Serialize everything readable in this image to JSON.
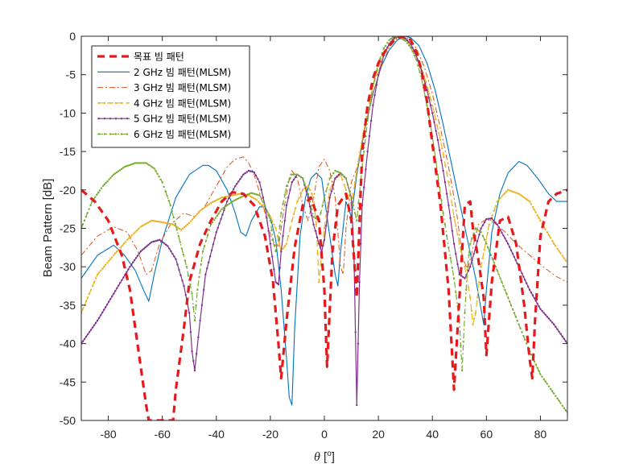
{
  "chart_data": {
    "type": "line",
    "xlabel": "θ [ᵒ]",
    "ylabel": "Beam Pattern [dB]",
    "xlim": [
      -90,
      90
    ],
    "ylim": [
      -50,
      0
    ],
    "xticks": [
      -80,
      -60,
      -40,
      -20,
      0,
      20,
      40,
      60,
      80
    ],
    "xtick_labels": [
      "-80",
      "-60",
      "-40",
      "-20",
      "0",
      "20",
      "40",
      "60",
      "80"
    ],
    "yticks": [
      0,
      -5,
      -10,
      -15,
      -20,
      -25,
      -30,
      -35,
      -40,
      -45,
      -50
    ],
    "ytick_labels": [
      "0",
      "-5",
      "-10",
      "-15",
      "-20",
      "-25",
      "-30",
      "-35",
      "-40",
      "-45",
      "-50"
    ],
    "grid": false,
    "legend_position": "top-left",
    "series": [
      {
        "name": "목표 빔 패턴",
        "color": "#e41a1c",
        "style": "dashed-thick",
        "x": [
          -90,
          -85,
          -80,
          -75,
          -72,
          -70,
          -68,
          -66,
          -65,
          -56,
          -55,
          -52,
          -50,
          -46,
          -42,
          -38,
          -34,
          -30,
          -26,
          -22,
          -19,
          -17,
          -16,
          -14,
          -11,
          -8,
          -5,
          -2,
          0,
          1,
          3,
          5,
          8,
          10,
          12,
          14,
          16,
          18,
          20,
          22,
          24,
          26,
          28,
          30,
          32,
          34,
          36,
          38,
          40,
          43,
          46,
          48,
          50,
          52,
          54,
          55,
          57,
          59,
          60,
          62,
          65,
          68,
          71,
          74,
          76,
          77,
          78,
          80,
          83,
          86,
          90
        ],
        "y": [
          -20,
          -21.5,
          -24,
          -28.5,
          -33,
          -38,
          -43,
          -48,
          -50,
          -50,
          -46,
          -38,
          -32,
          -27,
          -24,
          -21.5,
          -20.3,
          -20.5,
          -22,
          -26,
          -32,
          -40,
          -44.5,
          -37,
          -27.5,
          -22,
          -21,
          -24,
          -33,
          -43,
          -28,
          -22,
          -20.5,
          -24,
          -34,
          -15,
          -9,
          -5.5,
          -3.5,
          -2.2,
          -1.2,
          -0.5,
          -0.1,
          0,
          -0.5,
          -2,
          -4.5,
          -8.5,
          -14,
          -22,
          -33,
          -46,
          -34,
          -22,
          -21.5,
          -25,
          -29,
          -34,
          -41.5,
          -32,
          -24,
          -23.5,
          -27,
          -35,
          -42,
          -44.5,
          -37,
          -26,
          -21.5,
          -20.5,
          -20
        ]
      },
      {
        "name": "2 GHz 빔 패턴(MLSM)",
        "color": "#0072bd",
        "style": "solid",
        "x": [
          -90,
          -84,
          -78,
          -74,
          -70,
          -67,
          -65,
          -63,
          -60,
          -55,
          -50,
          -45,
          -43,
          -40,
          -36,
          -33,
          -31,
          -29,
          -27,
          -24,
          -22,
          -20,
          -18,
          -16,
          -14,
          -13,
          -12,
          -11,
          -9,
          -7,
          -5,
          -3,
          -1,
          0,
          2,
          4,
          5,
          6,
          8,
          10,
          12,
          15,
          18,
          21,
          24,
          27,
          30,
          32,
          35,
          38,
          41,
          44,
          47,
          50,
          53,
          56,
          58,
          59,
          60,
          62,
          65,
          68,
          72,
          75,
          79,
          83,
          86,
          90
        ],
        "y": [
          -31.5,
          -28.5,
          -27.2,
          -28.5,
          -30.5,
          -33,
          -34.5,
          -31,
          -26.5,
          -21,
          -18,
          -16.8,
          -16.8,
          -17.5,
          -20,
          -23,
          -25.5,
          -26,
          -24,
          -22.2,
          -22.2,
          -23.5,
          -26.5,
          -33,
          -42,
          -47,
          -48,
          -38,
          -26,
          -21,
          -18.5,
          -17.8,
          -18.5,
          -21,
          -26,
          -31,
          -32.5,
          -28,
          -21.5,
          -23.5,
          -18,
          -12,
          -7.5,
          -4,
          -1.8,
          -0.5,
          0,
          -0.2,
          -1.2,
          -3.5,
          -7,
          -11.5,
          -16.5,
          -21.5,
          -26.5,
          -31.5,
          -35.5,
          -37.5,
          -33,
          -25.5,
          -20.5,
          -17.8,
          -16.3,
          -16.8,
          -18.5,
          -20.5,
          -21.5,
          -21.5
        ]
      },
      {
        "name": "3 GHz 빔 패턴(MLSM)",
        "color": "#d95319",
        "style": "dashdot",
        "x": [
          -90,
          -84,
          -78,
          -73,
          -69,
          -66,
          -64,
          -61,
          -57,
          -52,
          -48,
          -44,
          -40,
          -36,
          -33,
          -30,
          -28,
          -26,
          -23,
          -21,
          -19,
          -17,
          -15,
          -13,
          -12,
          -10,
          -8,
          -6,
          -4,
          -2,
          0,
          2,
          4,
          6,
          7,
          8,
          10,
          12,
          15,
          18,
          21,
          24,
          27,
          29,
          31,
          34,
          37,
          40,
          43,
          46,
          49,
          51,
          53,
          55,
          57,
          60,
          63,
          67,
          71,
          76,
          81,
          86,
          90
        ],
        "y": [
          -28.5,
          -26,
          -24.8,
          -25.5,
          -28,
          -31,
          -30.5,
          -27,
          -24.5,
          -23,
          -23.5,
          -22,
          -19.5,
          -17,
          -16,
          -15.7,
          -16.5,
          -18,
          -21.5,
          -24.5,
          -27,
          -27.5,
          -22.5,
          -18.5,
          -17.5,
          -18.5,
          -22,
          -24,
          -21,
          -17,
          -16,
          -17.5,
          -21,
          -30,
          -31,
          -25,
          -19,
          -17.2,
          -12,
          -7.5,
          -4,
          -1.5,
          -0.2,
          0,
          -0.3,
          -1.5,
          -4,
          -7.5,
          -12,
          -17,
          -23,
          -28.5,
          -30.5,
          -27.5,
          -24.5,
          -23.8,
          -24.3,
          -25.5,
          -27,
          -28.5,
          -30,
          -31.3,
          -32
        ]
      },
      {
        "name": "4 GHz 빔 패턴(MLSM)",
        "color": "#edb120",
        "style": "dashed-dots",
        "x": [
          -90,
          -84,
          -78,
          -73,
          -68,
          -64,
          -60,
          -56,
          -53,
          -50,
          -46,
          -42,
          -38,
          -34,
          -31,
          -28,
          -25,
          -22,
          -20,
          -18,
          -16,
          -14,
          -12,
          -10,
          -8,
          -6,
          -4,
          -3,
          -2,
          0,
          2,
          4,
          6,
          8,
          10,
          12,
          15,
          18,
          21,
          24,
          27,
          29,
          31,
          34,
          37,
          40,
          43,
          46,
          48,
          50,
          52,
          54,
          55,
          56,
          58,
          61,
          64,
          68,
          72,
          76,
          80,
          85,
          90
        ],
        "y": [
          -36,
          -31,
          -28.5,
          -26.5,
          -24.8,
          -24,
          -24.2,
          -24.5,
          -25.2,
          -24.3,
          -22.7,
          -21.7,
          -21,
          -20.7,
          -20.5,
          -20.7,
          -21.3,
          -22.5,
          -23.5,
          -25,
          -28,
          -27,
          -24,
          -21.5,
          -20,
          -19.5,
          -21,
          -24.5,
          -32,
          -25,
          -20,
          -18.5,
          -18,
          -20,
          -22,
          -17.5,
          -11.5,
          -6.5,
          -3,
          -1,
          0,
          -0.2,
          -0.8,
          -2.5,
          -5.2,
          -9,
          -13.5,
          -19,
          -23.5,
          -27,
          -30,
          -34,
          -37.5,
          -36,
          -30,
          -24.5,
          -21.5,
          -20,
          -20.5,
          -21.5,
          -24,
          -27,
          -29.5
        ]
      },
      {
        "name": "5 GHz 빔 패턴(MLSM)",
        "color": "#7e2f8e",
        "style": "solid-dots",
        "x": [
          -90,
          -84,
          -78,
          -72,
          -68,
          -64,
          -61,
          -58,
          -55,
          -52,
          -50,
          -49,
          -48,
          -46,
          -44,
          -40,
          -36,
          -33,
          -30,
          -28,
          -26,
          -24,
          -22,
          -20,
          -18,
          -17,
          -16,
          -14,
          -12,
          -10,
          -8,
          -6,
          -4,
          -2,
          -1,
          0,
          2,
          4,
          6,
          8,
          10,
          11,
          12,
          13,
          14,
          16,
          18,
          20,
          22,
          24,
          26,
          28,
          30,
          32,
          34,
          36,
          38,
          40,
          42,
          44,
          46,
          48,
          50,
          52,
          54,
          56,
          58,
          60,
          62,
          64,
          68,
          72,
          76,
          80,
          85,
          90
        ],
        "y": [
          -40,
          -37,
          -33.5,
          -30,
          -28,
          -26.8,
          -26.5,
          -27.3,
          -29,
          -32.5,
          -36,
          -41,
          -43.5,
          -37,
          -31,
          -25.5,
          -21.5,
          -19.5,
          -18,
          -17.5,
          -17.7,
          -19,
          -22,
          -27,
          -32,
          -32.3,
          -28,
          -22,
          -19,
          -18,
          -18.5,
          -21,
          -24.5,
          -27,
          -28,
          -26.5,
          -21,
          -18.5,
          -17.8,
          -18.5,
          -21,
          -29,
          -48,
          -32,
          -22,
          -15,
          -9,
          -5,
          -2.5,
          -1,
          -0.2,
          0,
          -0.3,
          -1,
          -2.5,
          -4.5,
          -7,
          -10,
          -13.5,
          -17.5,
          -22,
          -27,
          -31,
          -31.5,
          -30,
          -27.5,
          -25,
          -23.8,
          -23.7,
          -24.5,
          -27,
          -30,
          -33,
          -35.5,
          -37.5,
          -40
        ]
      },
      {
        "name": "6 GHz 빔 패턴(MLSM)",
        "color": "#77ac30",
        "style": "dashdot-dots",
        "x": [
          -90,
          -86,
          -82,
          -78,
          -74,
          -70,
          -66,
          -63,
          -60,
          -57,
          -54,
          -51,
          -49,
          -48,
          -47,
          -45,
          -42,
          -38,
          -34,
          -30,
          -27,
          -24,
          -22,
          -20,
          -19,
          -18,
          -17,
          -16,
          -14,
          -12,
          -10,
          -8,
          -6,
          -4,
          -2,
          0,
          2,
          4,
          6,
          8,
          10,
          12,
          14,
          16,
          18,
          20,
          22,
          24,
          26,
          28,
          30,
          32,
          34,
          36,
          38,
          40,
          42,
          44,
          46,
          48,
          50,
          51,
          52,
          53,
          54,
          56,
          58,
          60,
          64,
          68,
          72,
          76,
          80,
          85,
          90
        ],
        "y": [
          -25,
          -21.5,
          -19.5,
          -18,
          -17,
          -16.5,
          -16.5,
          -17.2,
          -19,
          -22,
          -26,
          -30,
          -33.5,
          -37,
          -33,
          -28,
          -24.5,
          -22.5,
          -21.5,
          -20.8,
          -20.4,
          -20.7,
          -22,
          -24,
          -26.5,
          -28,
          -26.5,
          -23,
          -19.5,
          -18,
          -18,
          -18.5,
          -20.5,
          -23.5,
          -24,
          -21,
          -18.5,
          -17.5,
          -17.8,
          -18.5,
          -21,
          -24,
          -17,
          -11,
          -6.5,
          -3.5,
          -1.6,
          -0.5,
          0,
          -0.2,
          -0.6,
          -1.5,
          -3,
          -5.5,
          -9,
          -13,
          -18,
          -23,
          -27.5,
          -31.5,
          -37,
          -43.5,
          -36,
          -30,
          -27,
          -25,
          -25.5,
          -27,
          -30.5,
          -34,
          -37.5,
          -41,
          -44,
          -46.5,
          -49
        ]
      }
    ]
  }
}
